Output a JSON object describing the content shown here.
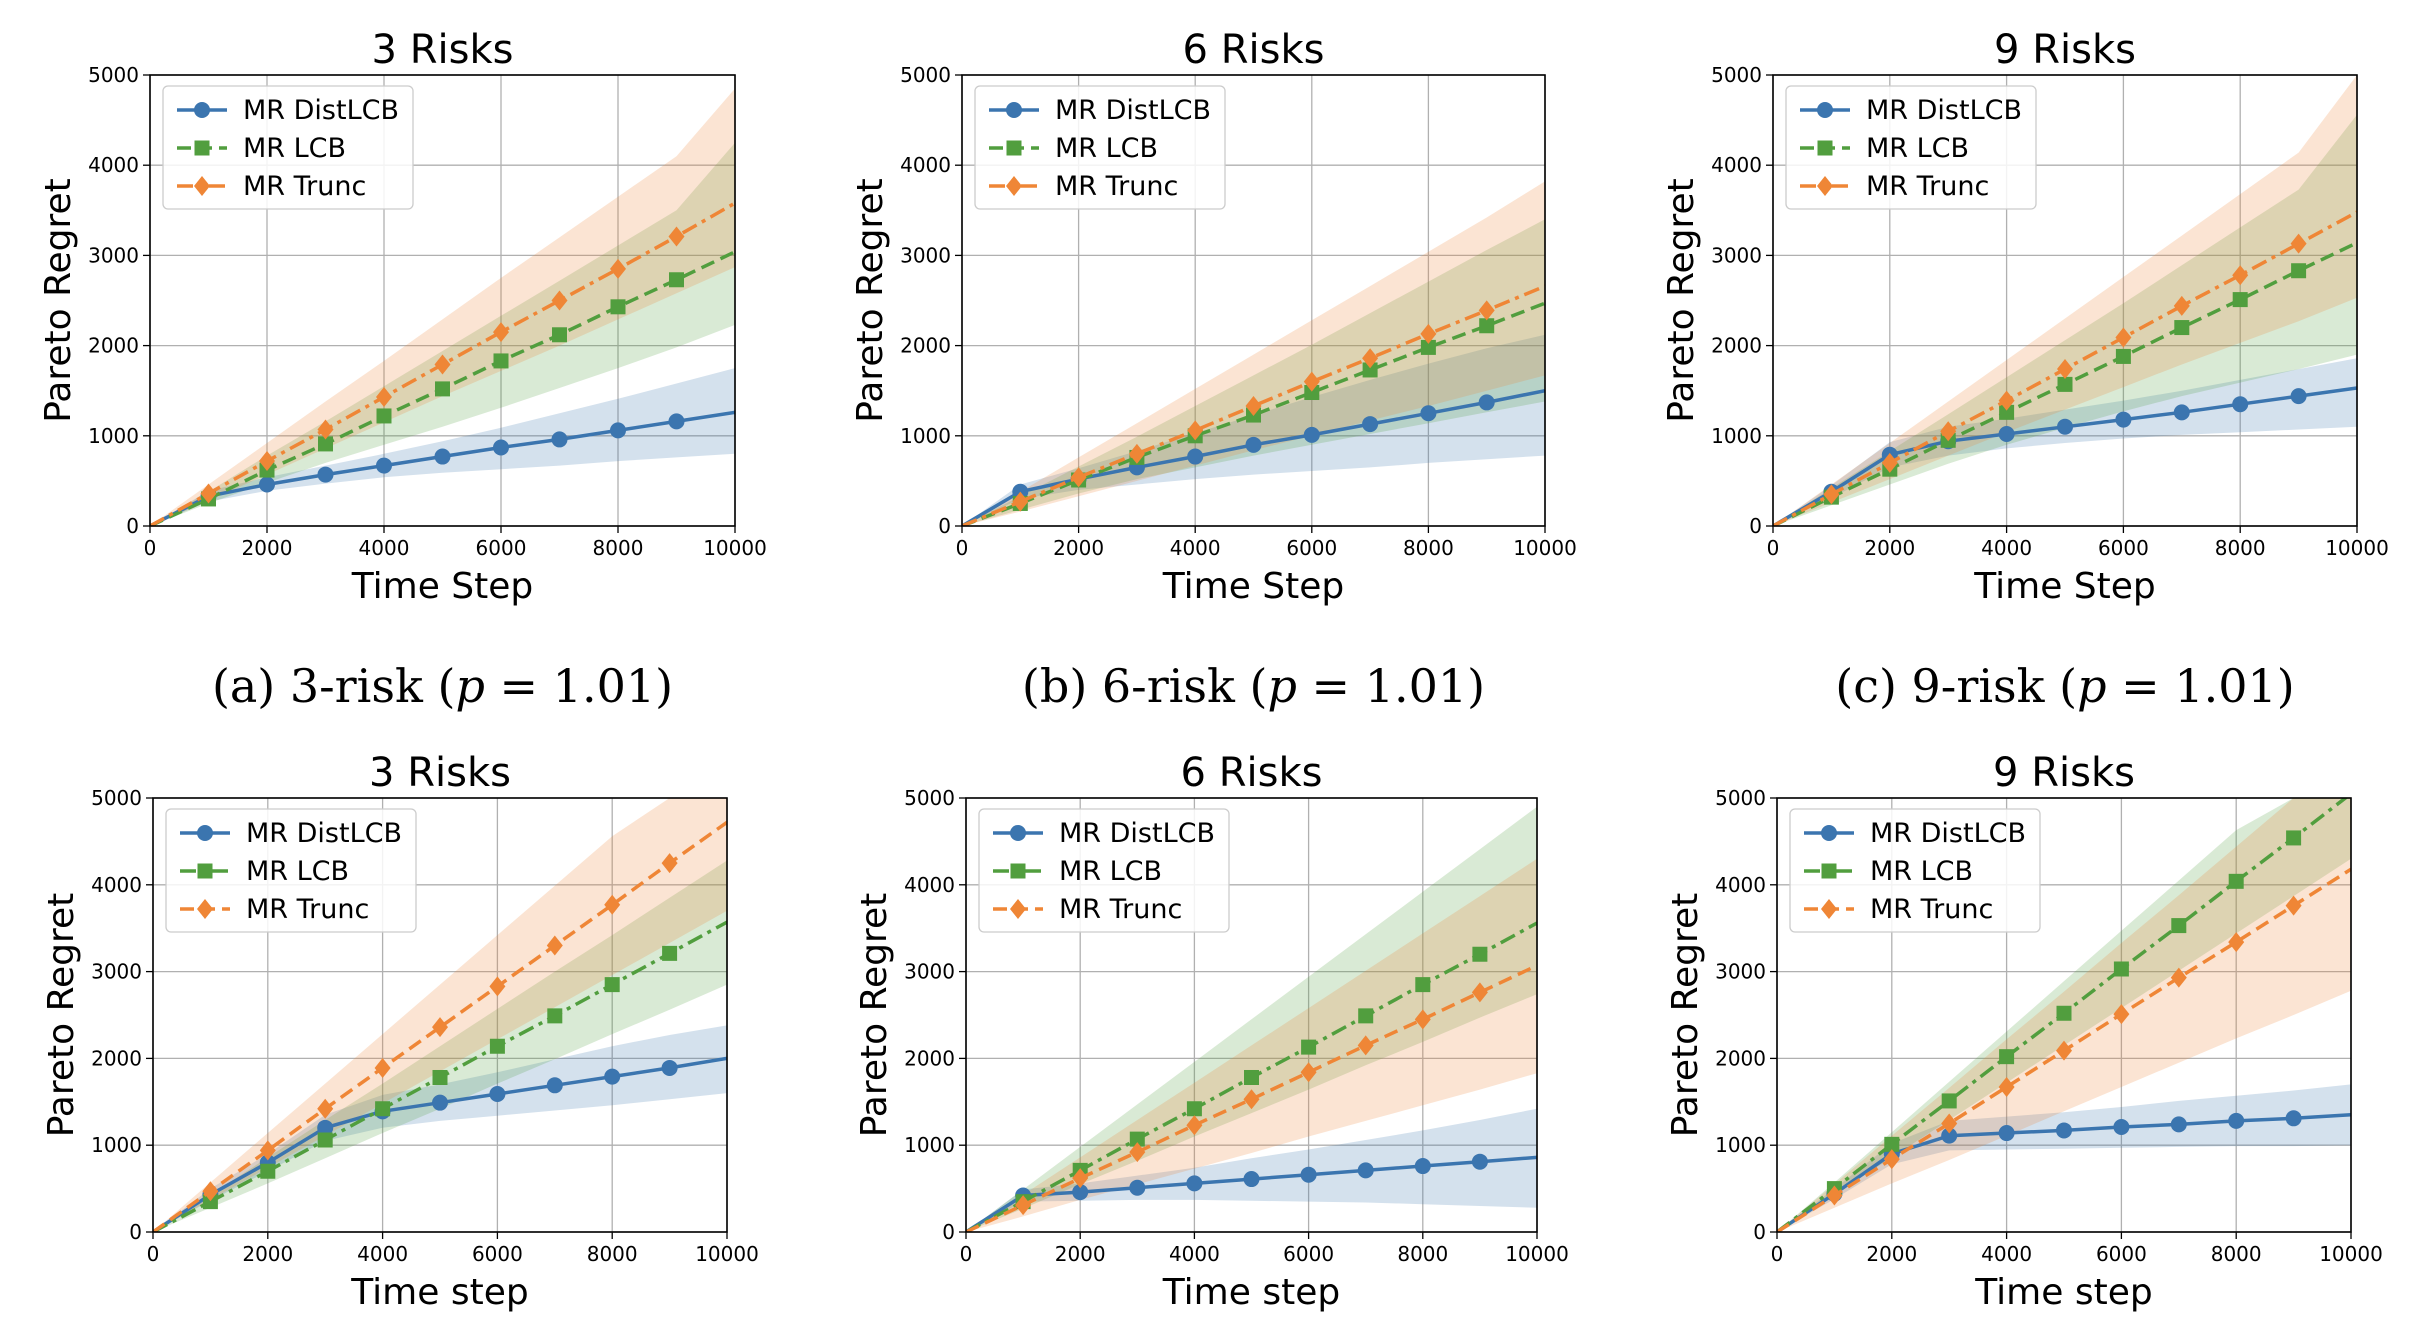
{
  "colors": {
    "distlcb": "#3b75af",
    "lcb": "#519e3e",
    "trunc": "#ef8636"
  },
  "chart_data": [
    {
      "type": "line",
      "title": "3 Risks",
      "xlabel": "Time Step",
      "ylabel": "Pareto Regret",
      "xlim": [
        0,
        10000
      ],
      "ylim": [
        0,
        5000
      ],
      "xticks": [
        "0",
        "2000",
        "4000",
        "6000",
        "8000",
        "10000"
      ],
      "yticks": [
        "0",
        "1000",
        "2000",
        "3000",
        "4000",
        "5000"
      ],
      "grid": true,
      "legend": "top-left",
      "caption": "(a) 3-risk (p = 1.01)",
      "x": [
        0,
        1000,
        2000,
        3000,
        4000,
        5000,
        6000,
        7000,
        8000,
        9000,
        10000
      ],
      "series": [
        {
          "name": "MR DistLCB",
          "style": "solid",
          "marker": "circle",
          "color": "#3b75af",
          "values": [
            0,
            330,
            460,
            570,
            670,
            770,
            870,
            960,
            1060,
            1160,
            1260
          ],
          "lower": [
            0,
            270,
            390,
            470,
            540,
            590,
            630,
            670,
            720,
            760,
            800
          ],
          "upper": [
            0,
            390,
            540,
            670,
            800,
            940,
            1090,
            1250,
            1410,
            1580,
            1750
          ]
        },
        {
          "name": "MR LCB",
          "style": "dashed",
          "marker": "square",
          "color": "#519e3e",
          "values": [
            0,
            300,
            620,
            910,
            1220,
            1520,
            1830,
            2120,
            2430,
            2730,
            3040
          ],
          "lower": [
            0,
            250,
            480,
            700,
            900,
            1100,
            1310,
            1530,
            1750,
            1980,
            2230
          ],
          "upper": [
            0,
            380,
            780,
            1160,
            1550,
            1940,
            2330,
            2720,
            3110,
            3500,
            4250
          ]
        },
        {
          "name": "MR Trunc",
          "style": "dashdot",
          "marker": "diamond",
          "color": "#ef8636",
          "values": [
            0,
            360,
            720,
            1070,
            1430,
            1790,
            2150,
            2500,
            2850,
            3210,
            3580
          ],
          "lower": [
            0,
            280,
            570,
            860,
            1150,
            1440,
            1720,
            2000,
            2290,
            2580,
            2870
          ],
          "upper": [
            0,
            460,
            920,
            1380,
            1830,
            2290,
            2750,
            3200,
            3650,
            4100,
            4850
          ]
        }
      ]
    },
    {
      "type": "line",
      "title": "6 Risks",
      "xlabel": "Time Step",
      "ylabel": "Pareto Regret",
      "xlim": [
        0,
        10000
      ],
      "ylim": [
        0,
        5000
      ],
      "xticks": [
        "0",
        "2000",
        "4000",
        "6000",
        "8000",
        "10000"
      ],
      "yticks": [
        "0",
        "1000",
        "2000",
        "3000",
        "4000",
        "5000"
      ],
      "grid": true,
      "legend": "top-left",
      "caption": "(b) 6-risk (p = 1.01)",
      "x": [
        0,
        1000,
        2000,
        3000,
        4000,
        5000,
        6000,
        7000,
        8000,
        9000,
        10000
      ],
      "series": [
        {
          "name": "MR DistLCB",
          "style": "solid",
          "marker": "circle",
          "color": "#3b75af",
          "values": [
            0,
            380,
            520,
            650,
            770,
            900,
            1010,
            1130,
            1250,
            1370,
            1500
          ],
          "lower": [
            0,
            300,
            400,
            460,
            520,
            570,
            610,
            650,
            700,
            740,
            780
          ],
          "upper": [
            0,
            460,
            640,
            830,
            1030,
            1230,
            1430,
            1620,
            1800,
            1970,
            2120
          ]
        },
        {
          "name": "MR LCB",
          "style": "dashed",
          "marker": "square",
          "color": "#519e3e",
          "values": [
            0,
            250,
            510,
            760,
            1000,
            1230,
            1480,
            1730,
            1980,
            2220,
            2470
          ],
          "lower": [
            0,
            180,
            360,
            520,
            650,
            780,
            900,
            1020,
            1140,
            1260,
            1380
          ],
          "upper": [
            0,
            330,
            660,
            990,
            1330,
            1670,
            2010,
            2360,
            2710,
            3060,
            3400
          ]
        },
        {
          "name": "MR Trunc",
          "style": "dashdot",
          "marker": "diamond",
          "color": "#ef8636",
          "values": [
            0,
            270,
            540,
            800,
            1060,
            1330,
            1600,
            1860,
            2130,
            2390,
            2660
          ],
          "lower": [
            0,
            160,
            330,
            500,
            670,
            840,
            1000,
            1170,
            1330,
            1500,
            1670
          ],
          "upper": [
            0,
            380,
            760,
            1140,
            1520,
            1900,
            2280,
            2660,
            3040,
            3420,
            3820
          ]
        }
      ]
    },
    {
      "type": "line",
      "title": "9 Risks",
      "xlabel": "Time Step",
      "ylabel": "Pareto Regret",
      "xlim": [
        0,
        10000
      ],
      "ylim": [
        0,
        5000
      ],
      "xticks": [
        "0",
        "2000",
        "4000",
        "6000",
        "8000",
        "10000"
      ],
      "yticks": [
        "0",
        "1000",
        "2000",
        "3000",
        "4000",
        "5000"
      ],
      "grid": true,
      "legend": "top-left",
      "caption": "(c) 9-risk (p = 1.01)",
      "x": [
        0,
        1000,
        2000,
        3000,
        4000,
        5000,
        6000,
        7000,
        8000,
        9000,
        10000
      ],
      "series": [
        {
          "name": "MR DistLCB",
          "style": "solid",
          "marker": "circle",
          "color": "#3b75af",
          "values": [
            0,
            380,
            790,
            940,
            1020,
            1100,
            1180,
            1260,
            1350,
            1440,
            1530
          ],
          "lower": [
            0,
            310,
            650,
            780,
            860,
            920,
            970,
            1010,
            1040,
            1070,
            1100
          ],
          "upper": [
            0,
            450,
            930,
            1100,
            1190,
            1290,
            1390,
            1500,
            1620,
            1740,
            1860
          ]
        },
        {
          "name": "MR LCB",
          "style": "dashed",
          "marker": "square",
          "color": "#519e3e",
          "values": [
            0,
            320,
            630,
            950,
            1260,
            1570,
            1880,
            2200,
            2510,
            2830,
            3140
          ],
          "lower": [
            0,
            230,
            460,
            690,
            900,
            1090,
            1270,
            1440,
            1590,
            1740,
            1900
          ],
          "upper": [
            0,
            420,
            830,
            1240,
            1650,
            2060,
            2470,
            2890,
            3310,
            3730,
            4560
          ]
        },
        {
          "name": "MR Trunc",
          "style": "dashdot",
          "marker": "diamond",
          "color": "#ef8636",
          "values": [
            0,
            350,
            700,
            1050,
            1390,
            1740,
            2090,
            2440,
            2780,
            3130,
            3480
          ],
          "lower": [
            0,
            260,
            520,
            780,
            1040,
            1290,
            1540,
            1790,
            2030,
            2270,
            2530
          ],
          "upper": [
            0,
            460,
            920,
            1380,
            1840,
            2300,
            2760,
            3220,
            3680,
            4140,
            5000
          ]
        }
      ]
    },
    {
      "type": "line",
      "title": "3 Risks",
      "xlabel": "Time step",
      "ylabel": "Pareto Regret",
      "xlim": [
        0,
        10000
      ],
      "ylim": [
        0,
        5000
      ],
      "xticks": [
        "0",
        "2000",
        "4000",
        "6000",
        "8000",
        "10000"
      ],
      "yticks": [
        "0",
        "1000",
        "2000",
        "3000",
        "4000",
        "5000"
      ],
      "grid": true,
      "legend": "top-left",
      "x": [
        0,
        1000,
        2000,
        3000,
        4000,
        5000,
        6000,
        7000,
        8000,
        9000,
        10000
      ],
      "series": [
        {
          "name": "MR DistLCB",
          "style": "solid",
          "marker": "circle",
          "color": "#3b75af",
          "values": [
            0,
            430,
            800,
            1200,
            1390,
            1490,
            1590,
            1690,
            1790,
            1890,
            2000
          ],
          "lower": [
            0,
            360,
            700,
            1050,
            1200,
            1280,
            1340,
            1400,
            1460,
            1530,
            1600
          ],
          "upper": [
            0,
            500,
            900,
            1350,
            1580,
            1700,
            1840,
            1990,
            2140,
            2270,
            2380
          ]
        },
        {
          "name": "MR LCB",
          "style": "dashdot",
          "marker": "square",
          "color": "#519e3e",
          "values": [
            0,
            350,
            700,
            1060,
            1420,
            1780,
            2140,
            2490,
            2850,
            3210,
            3570
          ],
          "lower": [
            0,
            280,
            560,
            850,
            1140,
            1420,
            1710,
            1990,
            2280,
            2560,
            2850
          ],
          "upper": [
            0,
            430,
            860,
            1290,
            1710,
            2140,
            2570,
            3000,
            3420,
            3850,
            4280
          ]
        },
        {
          "name": "MR Trunc",
          "style": "dashed",
          "marker": "diamond",
          "color": "#ef8636",
          "values": [
            0,
            470,
            940,
            1420,
            1890,
            2360,
            2830,
            3300,
            3770,
            4250,
            4720
          ],
          "lower": [
            0,
            370,
            740,
            1110,
            1480,
            1850,
            2220,
            2590,
            2960,
            3330,
            3700
          ],
          "upper": [
            0,
            570,
            1140,
            1710,
            2280,
            2850,
            3420,
            3990,
            4560,
            5000,
            5000
          ]
        }
      ]
    },
    {
      "type": "line",
      "title": "6 Risks",
      "xlabel": "Time step",
      "ylabel": "Pareto Regret",
      "xlim": [
        0,
        10000
      ],
      "ylim": [
        0,
        5000
      ],
      "xticks": [
        "0",
        "2000",
        "4000",
        "6000",
        "8000",
        "10000"
      ],
      "yticks": [
        "0",
        "1000",
        "2000",
        "3000",
        "4000",
        "5000"
      ],
      "grid": true,
      "legend": "top-left",
      "x": [
        0,
        1000,
        2000,
        3000,
        4000,
        5000,
        6000,
        7000,
        8000,
        9000,
        10000
      ],
      "series": [
        {
          "name": "MR DistLCB",
          "style": "solid",
          "marker": "circle",
          "color": "#3b75af",
          "values": [
            0,
            420,
            460,
            510,
            560,
            610,
            660,
            710,
            760,
            810,
            860
          ],
          "lower": [
            0,
            350,
            360,
            370,
            370,
            360,
            350,
            340,
            320,
            300,
            280
          ],
          "upper": [
            0,
            490,
            560,
            650,
            740,
            850,
            950,
            1060,
            1170,
            1290,
            1420
          ]
        },
        {
          "name": "MR LCB",
          "style": "dashdot",
          "marker": "square",
          "color": "#519e3e",
          "values": [
            0,
            350,
            710,
            1070,
            1420,
            1780,
            2130,
            2490,
            2850,
            3200,
            3560
          ],
          "lower": [
            0,
            270,
            550,
            820,
            1100,
            1370,
            1640,
            1920,
            2190,
            2470,
            2740
          ],
          "upper": [
            0,
            490,
            980,
            1470,
            1960,
            2450,
            2940,
            3430,
            3920,
            4410,
            4900
          ]
        },
        {
          "name": "MR Trunc",
          "style": "dashed",
          "marker": "diamond",
          "color": "#ef8636",
          "values": [
            0,
            310,
            620,
            920,
            1230,
            1530,
            1840,
            2150,
            2450,
            2760,
            3070
          ],
          "lower": [
            0,
            180,
            370,
            550,
            730,
            910,
            1100,
            1280,
            1460,
            1640,
            1830
          ],
          "upper": [
            0,
            430,
            860,
            1290,
            1720,
            2150,
            2580,
            3010,
            3440,
            3870,
            4300
          ]
        }
      ]
    },
    {
      "type": "line",
      "title": "9 Risks",
      "xlabel": "Time step",
      "ylabel": "Pareto Regret",
      "xlim": [
        0,
        10000
      ],
      "ylim": [
        0,
        5000
      ],
      "xticks": [
        "0",
        "2000",
        "4000",
        "6000",
        "8000",
        "10000"
      ],
      "yticks": [
        "0",
        "1000",
        "2000",
        "3000",
        "4000",
        "5000"
      ],
      "grid": true,
      "legend": "top-left",
      "x": [
        0,
        1000,
        2000,
        3000,
        4000,
        5000,
        6000,
        7000,
        8000,
        9000,
        10000
      ],
      "series": [
        {
          "name": "MR DistLCB",
          "style": "solid",
          "marker": "circle",
          "color": "#3b75af",
          "values": [
            0,
            440,
            900,
            1110,
            1140,
            1170,
            1210,
            1240,
            1280,
            1310,
            1350
          ],
          "lower": [
            0,
            380,
            780,
            940,
            950,
            960,
            970,
            980,
            990,
            990,
            1000
          ],
          "upper": [
            0,
            500,
            1020,
            1280,
            1330,
            1380,
            1440,
            1510,
            1570,
            1630,
            1700
          ]
        },
        {
          "name": "MR LCB",
          "style": "dashdot",
          "marker": "square",
          "color": "#519e3e",
          "values": [
            0,
            500,
            1010,
            1510,
            2020,
            2520,
            3030,
            3530,
            4040,
            4540,
            5050
          ],
          "lower": [
            0,
            430,
            860,
            1290,
            1720,
            2150,
            2580,
            3010,
            3440,
            3870,
            4300
          ],
          "upper": [
            0,
            570,
            1150,
            1730,
            2310,
            2890,
            3470,
            4050,
            4630,
            5000,
            5000
          ]
        },
        {
          "name": "MR Trunc",
          "style": "dashed",
          "marker": "diamond",
          "color": "#ef8636",
          "values": [
            0,
            420,
            840,
            1250,
            1670,
            2090,
            2510,
            2930,
            3340,
            3760,
            4180
          ],
          "lower": [
            0,
            280,
            560,
            830,
            1110,
            1390,
            1670,
            1950,
            2230,
            2500,
            2780
          ],
          "upper": [
            0,
            550,
            1110,
            1660,
            2220,
            2770,
            3330,
            3880,
            4440,
            5000,
            5000
          ]
        }
      ]
    }
  ]
}
